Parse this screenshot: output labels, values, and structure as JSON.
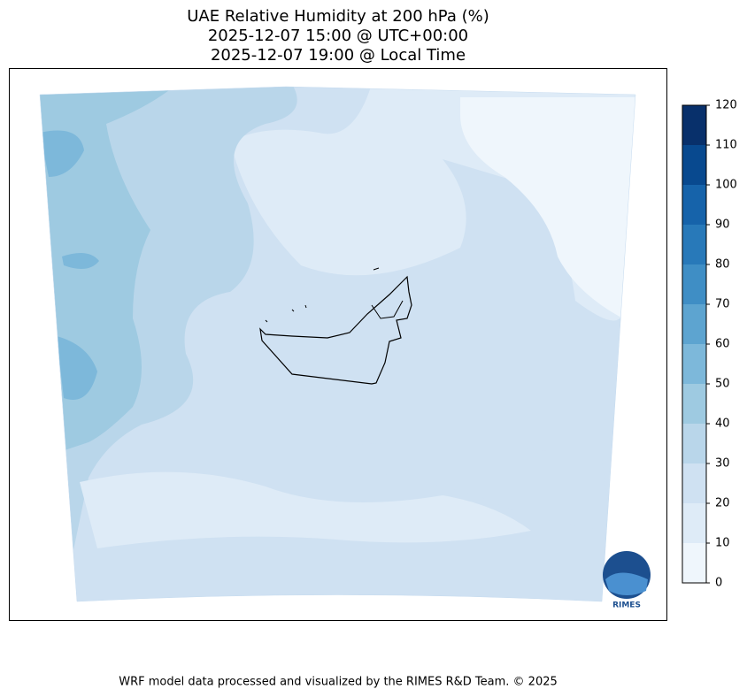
{
  "header": {
    "title": [
      "UAE Relative Humidity at 200 hPa (%)",
      "2025-12-07 15:00 @ UTC+00:00",
      "2025-12-07 19:00 @ Local Time"
    ]
  },
  "map": {
    "colorbar": {
      "ticks": [
        0,
        10,
        20,
        30,
        40,
        50,
        60,
        70,
        80,
        90,
        100,
        110,
        120
      ],
      "colors": [
        "#eff6fc",
        "#deebf7",
        "#cfe1f2",
        "#b9d6ea",
        "#9ecae1",
        "#7db8da",
        "#5da4d0",
        "#3f8ec5",
        "#2879b9",
        "#1663aa",
        "#08498f",
        "#08306b"
      ]
    },
    "logo": "RIMES"
  },
  "footer": "WRF model data processed and visualized by the RIMES R&D Team. © 2025"
}
